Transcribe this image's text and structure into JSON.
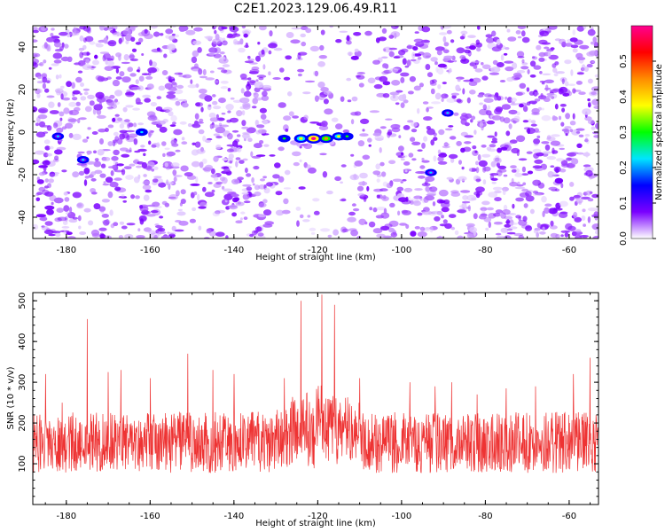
{
  "figure": {
    "title": "C2E1.2023.129.06.49.R11"
  },
  "chart_data": [
    {
      "type": "heatmap",
      "xlabel": "Height of straight line (km)",
      "ylabel": "Frequency (Hz)",
      "xlim": [
        -188,
        -53
      ],
      "ylim": [
        -50,
        50
      ],
      "x_ticks": [
        -180,
        -160,
        -140,
        -120,
        -100,
        -80,
        -60
      ],
      "y_ticks": [
        -40,
        -20,
        0,
        20,
        40
      ],
      "colorbar": {
        "label": "Normalized spectral amplitude",
        "range": [
          0,
          0.6
        ],
        "ticks": [
          0.0,
          0.1,
          0.2,
          0.3,
          0.4,
          0.5
        ],
        "colors": [
          "#ffffff",
          "#7a00ff",
          "#0000ff",
          "#00e5ff",
          "#00ff00",
          "#ffff00",
          "#ff8c00",
          "#ff0000",
          "#ff0090"
        ]
      },
      "features": [
        {
          "x": -121,
          "y": -3,
          "amplitude": 0.5
        },
        {
          "x": -118,
          "y": -3,
          "amplitude": 0.35
        },
        {
          "x": -115,
          "y": -2,
          "amplitude": 0.25
        },
        {
          "x": -124,
          "y": -3,
          "amplitude": 0.3
        },
        {
          "x": -113,
          "y": -2,
          "amplitude": 0.2
        },
        {
          "x": -128,
          "y": -3,
          "amplitude": 0.18
        },
        {
          "x": -162,
          "y": 0,
          "amplitude": 0.15
        },
        {
          "x": -176,
          "y": -13,
          "amplitude": 0.14
        },
        {
          "x": -182,
          "y": -2,
          "amplitude": 0.13
        },
        {
          "x": -89,
          "y": 9,
          "amplitude": 0.12
        },
        {
          "x": -93,
          "y": -19,
          "amplitude": 0.12
        }
      ]
    },
    {
      "type": "line",
      "xlabel": "Height of straight line (km)",
      "ylabel": "SNR (10 * v/v)",
      "xlim": [
        -188,
        -53
      ],
      "ylim": [
        0,
        520
      ],
      "x_ticks": [
        -180,
        -160,
        -140,
        -120,
        -100,
        -80,
        -60
      ],
      "y_ticks": [
        100,
        200,
        300,
        400,
        500
      ],
      "series": [
        {
          "color": "#ee3333",
          "baseline_mean": 130,
          "noise_band": [
            40,
            260
          ],
          "peaks": [
            {
              "x": -185,
              "y": 320
            },
            {
              "x": -181,
              "y": 250
            },
            {
              "x": -175,
              "y": 455
            },
            {
              "x": -170,
              "y": 325
            },
            {
              "x": -167,
              "y": 330
            },
            {
              "x": -160,
              "y": 310
            },
            {
              "x": -151,
              "y": 370
            },
            {
              "x": -145,
              "y": 330
            },
            {
              "x": -140,
              "y": 320
            },
            {
              "x": -128,
              "y": 310
            },
            {
              "x": -124,
              "y": 500
            },
            {
              "x": -119,
              "y": 515
            },
            {
              "x": -116,
              "y": 490
            },
            {
              "x": -110,
              "y": 310
            },
            {
              "x": -98,
              "y": 300
            },
            {
              "x": -92,
              "y": 290
            },
            {
              "x": -88,
              "y": 300
            },
            {
              "x": -82,
              "y": 270
            },
            {
              "x": -75,
              "y": 285
            },
            {
              "x": -68,
              "y": 290
            },
            {
              "x": -59,
              "y": 320
            },
            {
              "x": -55,
              "y": 360
            }
          ]
        }
      ]
    }
  ]
}
